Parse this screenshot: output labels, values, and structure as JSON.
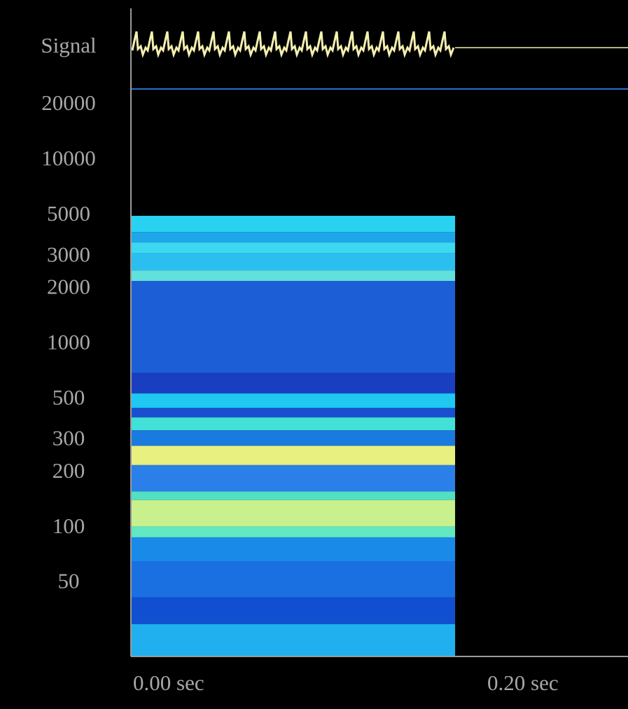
{
  "chart_data": {
    "type": "spectrogram",
    "signal_label": "Signal",
    "xlim": [
      0,
      0.2806
    ],
    "xticks": [
      {
        "value": 0,
        "label": "0.00 sec"
      },
      {
        "value": 0.2,
        "label": "0.20 sec"
      }
    ],
    "ylim": [
      20,
      24500
    ],
    "log_scale_y": true,
    "yticks": [
      50,
      100,
      200,
      300,
      500,
      1000,
      2000,
      3000,
      5000,
      10000,
      20000
    ],
    "extent": [
      0,
      0.183
    ],
    "bands": [
      {
        "low": 4080,
        "high": 5000,
        "color": "#2ad2f2"
      },
      {
        "low": 3580,
        "high": 4080,
        "color": "#1fa6ea"
      },
      {
        "low": 3130,
        "high": 3580,
        "color": "#3cd8f0"
      },
      {
        "low": 2520,
        "high": 3130,
        "color": "#2bbff0"
      },
      {
        "low": 2210,
        "high": 2520,
        "color": "#62e0dc"
      },
      {
        "low": 700,
        "high": 2210,
        "color": "#1c5ed6"
      },
      {
        "low": 540,
        "high": 700,
        "color": "#1a3ec0"
      },
      {
        "low": 450,
        "high": 540,
        "color": "#1ec8f0"
      },
      {
        "low": 400,
        "high": 450,
        "color": "#1a50d0"
      },
      {
        "low": 340,
        "high": 400,
        "color": "#42e0d6"
      },
      {
        "low": 280,
        "high": 340,
        "color": "#1a7ae0"
      },
      {
        "low": 220,
        "high": 280,
        "color": "#e8f080"
      },
      {
        "low": 158,
        "high": 220,
        "color": "#2a80e8"
      },
      {
        "low": 142,
        "high": 158,
        "color": "#52e0c2"
      },
      {
        "low": 102,
        "high": 142,
        "color": "#c8f08c"
      },
      {
        "low": 89,
        "high": 102,
        "color": "#62e8c0"
      },
      {
        "low": 66,
        "high": 89,
        "color": "#1a8ae8"
      },
      {
        "low": 42,
        "high": 66,
        "color": "#1a70e0"
      },
      {
        "low": 30,
        "high": 42,
        "color": "#1050d0"
      },
      {
        "low": 20,
        "high": 30,
        "color": "#20b0f0"
      }
    ]
  }
}
